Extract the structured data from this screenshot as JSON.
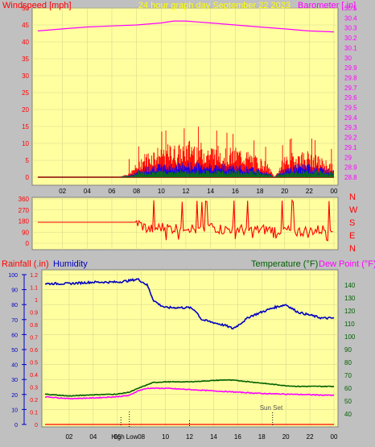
{
  "header": {
    "left_label": "Windspeed [mph]",
    "center_label": "24 hour graph day   September 22 2023",
    "right_label": "Barometer [.in]"
  },
  "colors": {
    "background": "#c0c0c0",
    "plot_bg": "#ffffa0",
    "wind": "#ff0000",
    "gust_blue": "#0000ff",
    "green": "#008000",
    "baro": "#ff00ff",
    "title": "#ffff00",
    "humidity": "#0000c0",
    "temp": "#006000",
    "dew": "#ff00ff"
  },
  "chart_data": [
    {
      "type": "line",
      "panel": "wind-barometer",
      "x_ticks": [
        "02",
        "04",
        "06",
        "08",
        "10",
        "12",
        "14",
        "16",
        "18",
        "20",
        "22",
        "00"
      ],
      "y_left": {
        "label": "Windspeed [mph]",
        "ticks": [
          0,
          5,
          10,
          15,
          20,
          25,
          30,
          35,
          40,
          45,
          50
        ],
        "lim": [
          0,
          50
        ]
      },
      "y_right": {
        "label": "Barometer [.in]",
        "ticks": [
          "28.8",
          "28.9",
          "29",
          "29.1",
          "29.2",
          "29.3",
          "29.4",
          "29.5",
          "29.6",
          "29.7",
          "29.8",
          "29.9",
          "30",
          "30.1",
          "30.2",
          "30.3",
          "30.4",
          "30.5"
        ],
        "lim": [
          28.8,
          30.5
        ]
      },
      "barometer": {
        "hours": [
          0,
          2,
          4,
          6,
          8,
          10,
          11,
          12,
          13,
          14,
          16,
          18,
          20,
          22,
          24
        ],
        "values": [
          30.27,
          30.29,
          30.31,
          30.32,
          30.33,
          30.35,
          30.37,
          30.37,
          30.36,
          30.35,
          30.33,
          30.31,
          30.29,
          30.27,
          30.26
        ]
      },
      "wind_envelope": {
        "hours": [
          0,
          6,
          6.8,
          7.5,
          8.5,
          9.5,
          10.5,
          11.5,
          12.5,
          13.5,
          14.5,
          15.5,
          16.5,
          17.5,
          18.5,
          19.2,
          20,
          21,
          22,
          23,
          24
        ],
        "gust_max": [
          0,
          0,
          0.5,
          1.5,
          7,
          9,
          10,
          10,
          12,
          10,
          10,
          9,
          9,
          7,
          5,
          0,
          7,
          8,
          8,
          6,
          4
        ],
        "avg_max": [
          0,
          0,
          0.3,
          0.8,
          3,
          4,
          4,
          4.5,
          4.5,
          4.5,
          4,
          4,
          3.5,
          3,
          2,
          0,
          3,
          4,
          4,
          3,
          2
        ]
      }
    },
    {
      "type": "line",
      "panel": "wind-direction",
      "y_left": {
        "ticks": [
          0,
          90,
          180,
          270,
          360
        ],
        "lim": [
          0,
          360
        ]
      },
      "compass": [
        "N",
        "W",
        "S",
        "E",
        "N"
      ],
      "direction": {
        "hours": [
          0,
          6,
          7,
          8,
          9,
          10,
          11,
          12,
          13,
          14,
          15,
          16,
          17,
          18,
          19,
          20,
          21,
          22,
          23,
          24
        ],
        "values": [
          170,
          170,
          170,
          170,
          110,
          130,
          120,
          140,
          100,
          140,
          110,
          120,
          100,
          110,
          110,
          105,
          95,
          100,
          110,
          120
        ]
      }
    },
    {
      "type": "line",
      "panel": "rain-humidity-temperature",
      "header": {
        "rain_label": "Rainfall (.in)",
        "humidity_label": "Humidity",
        "temp_label": "Temperature (°F)",
        "dew_label": "Dew Point (°F)"
      },
      "y_left_humidity": {
        "ticks": [
          0,
          10,
          20,
          30,
          40,
          50,
          60,
          70,
          80,
          90,
          100
        ],
        "lim": [
          0,
          100
        ]
      },
      "y_left_rain": {
        "ticks": [
          "0",
          "0.1",
          "0.2",
          "0.3",
          "0.4",
          "0.5",
          "0.6",
          "0.7",
          "0.8",
          "0.9",
          "1",
          "1.1",
          "1.2"
        ],
        "lim": [
          0,
          1.2
        ]
      },
      "y_right_temp": {
        "ticks": [
          40,
          50,
          60,
          70,
          80,
          90,
          100,
          110,
          120,
          130,
          140
        ],
        "lim": [
          32,
          148
        ]
      },
      "humidity": {
        "hours": [
          0,
          2,
          4,
          6,
          7,
          7.7,
          8.5,
          9,
          9.5,
          10,
          11,
          12,
          12.5,
          13,
          13.5,
          14,
          15,
          15.6,
          16,
          17,
          18,
          19,
          20,
          21,
          22,
          23,
          24
        ],
        "values": [
          94,
          94,
          95,
          95,
          96,
          97,
          93,
          83,
          80,
          78,
          78,
          78,
          76,
          70,
          69,
          68,
          66,
          64,
          66,
          72,
          75,
          78,
          80,
          75,
          73,
          71,
          71
        ]
      },
      "temperature": {
        "hours": [
          0,
          2,
          4,
          6,
          7,
          8,
          9,
          10,
          12,
          14,
          15,
          16,
          18,
          20,
          21,
          22,
          24
        ],
        "values": [
          55.5,
          54,
          55,
          55.5,
          57,
          61,
          64.5,
          65,
          65,
          66,
          66.5,
          66,
          64,
          62,
          61.5,
          61.5,
          61.5
        ]
      },
      "dew_point": {
        "hours": [
          0,
          2,
          4,
          6,
          7,
          7.7,
          8.5,
          10,
          12,
          14,
          16,
          18,
          20,
          22,
          24
        ],
        "values": [
          53.5,
          52,
          52.5,
          53.5,
          54.5,
          58,
          60,
          60,
          59,
          58,
          57,
          56,
          55.5,
          55,
          54.5
        ]
      },
      "rainfall": {
        "hours": [
          0,
          24
        ],
        "values": [
          0,
          0
        ]
      },
      "annotations": {
        "high_tide_label": "High",
        "low_tide_label": "Low",
        "high_tide_hour": 6.3,
        "low_tide_hour": 7.0,
        "noon_hour": 12.0,
        "sunset_label": "Sun Set",
        "sunset_hour": 18.9
      }
    }
  ]
}
